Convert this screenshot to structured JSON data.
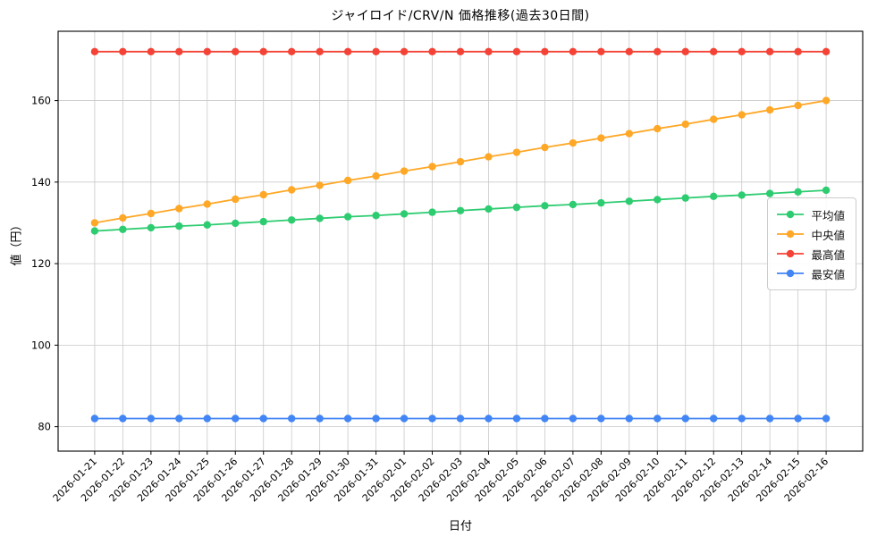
{
  "chart_data": {
    "type": "line",
    "title": "ジャイロイド/CRV/N 価格推移(過去30日間)",
    "xlabel": "日付",
    "ylabel": "値（円）",
    "grid": true,
    "legend_position": "center-right",
    "ylim": [
      74,
      177
    ],
    "yticks": [
      80,
      100,
      120,
      140,
      160
    ],
    "categories": [
      "2026-01-21",
      "2026-01-22",
      "2026-01-23",
      "2026-01-24",
      "2026-01-25",
      "2026-01-26",
      "2026-01-27",
      "2026-01-28",
      "2026-01-29",
      "2026-01-30",
      "2026-01-31",
      "2026-02-01",
      "2026-02-02",
      "2026-02-03",
      "2026-02-04",
      "2026-02-05",
      "2026-02-06",
      "2026-02-07",
      "2026-02-08",
      "2026-02-09",
      "2026-02-10",
      "2026-02-11",
      "2026-02-12",
      "2026-02-13",
      "2026-02-14",
      "2026-02-15",
      "2026-02-16"
    ],
    "series": [
      {
        "key": "average",
        "name": "平均値",
        "color": "#2ecc71",
        "values": [
          128.0,
          128.4,
          128.8,
          129.2,
          129.5,
          129.9,
          130.3,
          130.7,
          131.1,
          131.5,
          131.8,
          132.2,
          132.6,
          133.0,
          133.4,
          133.8,
          134.2,
          134.5,
          134.9,
          135.3,
          135.7,
          136.1,
          136.5,
          136.8,
          137.2,
          137.6,
          138.0
        ]
      },
      {
        "key": "median",
        "name": "中央値",
        "color": "#ffa726",
        "values": [
          130.0,
          131.2,
          132.3,
          133.5,
          134.6,
          135.8,
          136.9,
          138.1,
          139.2,
          140.4,
          141.5,
          142.7,
          143.8,
          145.0,
          146.2,
          147.3,
          148.5,
          149.6,
          150.8,
          151.9,
          153.1,
          154.2,
          155.4,
          156.5,
          157.7,
          158.8,
          160.0
        ]
      },
      {
        "key": "highest",
        "name": "最高値",
        "color": "#f44336",
        "values": [
          172,
          172,
          172,
          172,
          172,
          172,
          172,
          172,
          172,
          172,
          172,
          172,
          172,
          172,
          172,
          172,
          172,
          172,
          172,
          172,
          172,
          172,
          172,
          172,
          172,
          172,
          172
        ]
      },
      {
        "key": "lowest",
        "name": "最安値",
        "color": "#4285f4",
        "values": [
          82,
          82,
          82,
          82,
          82,
          82,
          82,
          82,
          82,
          82,
          82,
          82,
          82,
          82,
          82,
          82,
          82,
          82,
          82,
          82,
          82,
          82,
          82,
          82,
          82,
          82,
          82
        ]
      }
    ]
  }
}
